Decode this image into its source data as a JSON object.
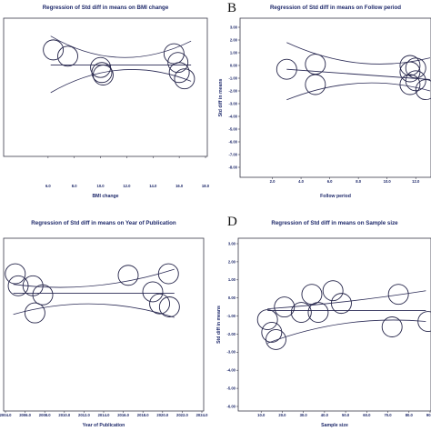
{
  "figure": {
    "letters": [
      "B",
      "D"
    ],
    "colors": {
      "ink": "#1f2a6b",
      "frame": "#3a3a4a",
      "line": "#2a2a55",
      "circle": "#25254a"
    }
  },
  "chart_data": [
    {
      "type": "scatter",
      "title": "Regression of Std diff in means on BMI change",
      "xlabel": "BMI change",
      "ylabel": "",
      "xticks": [
        "6.0",
        "8.0",
        "10.0",
        "12.0",
        "14.0",
        "16.0",
        "18.0"
      ],
      "xlim": [
        4.0,
        18.0
      ],
      "ylim": [
        -8.0,
        3.0
      ],
      "yticks": [],
      "points": [
        {
          "x": 6.4,
          "y": 1.2
        },
        {
          "x": 7.5,
          "y": 0.7
        },
        {
          "x": 10.0,
          "y": -0.2
        },
        {
          "x": 10.1,
          "y": -0.6
        },
        {
          "x": 10.2,
          "y": -0.8
        },
        {
          "x": 15.6,
          "y": 0.9
        },
        {
          "x": 15.9,
          "y": 0.2
        },
        {
          "x": 16.0,
          "y": -0.6
        },
        {
          "x": 16.4,
          "y": -1.1
        }
      ],
      "regression": {
        "intercept": 0.0,
        "slope": 0.0
      },
      "ci_upper": [
        [
          6.2,
          2.3
        ],
        [
          11.5,
          0.6
        ],
        [
          16.9,
          1.9
        ]
      ],
      "ci_lower": [
        [
          6.2,
          -2.2
        ],
        [
          11.5,
          -0.4
        ],
        [
          16.9,
          -1.3
        ]
      ]
    },
    {
      "type": "scatter",
      "title": "Regression of Std diff in means on Follow period",
      "xlabel": "Follow period",
      "ylabel": "Std diff in means",
      "xticks": [
        "2.0",
        "4.0",
        "6.0",
        "8.0",
        "10.0",
        "12.0"
      ],
      "xlim": [
        0.0,
        13.0
      ],
      "ylim": [
        -8.0,
        3.0
      ],
      "yticks": [
        "3.00",
        "2.00",
        "1.00",
        "0.00",
        "-1.00",
        "-2.00",
        "-3.00",
        "-4.00",
        "-5.00",
        "-6.00",
        "-7.00",
        "-8.00"
      ],
      "points": [
        {
          "x": 3.0,
          "y": -0.3
        },
        {
          "x": 5.0,
          "y": 0.1
        },
        {
          "x": 5.0,
          "y": -1.5
        },
        {
          "x": 11.6,
          "y": 0.0
        },
        {
          "x": 11.6,
          "y": -0.5
        },
        {
          "x": 11.6,
          "y": -1.5
        },
        {
          "x": 12.0,
          "y": -0.2
        },
        {
          "x": 12.0,
          "y": -1.2
        },
        {
          "x": 12.7,
          "y": -1.9
        }
      ],
      "regression": {
        "intercept": -0.3,
        "slope": -0.08
      },
      "ci_upper": [
        [
          3.0,
          1.8
        ],
        [
          8.0,
          0.2
        ],
        [
          13.0,
          0.6
        ]
      ],
      "ci_lower": [
        [
          3.0,
          -2.7
        ],
        [
          8.0,
          -1.4
        ],
        [
          13.0,
          -2.0
        ]
      ]
    },
    {
      "type": "scatter",
      "title": "Regression of Std diff in means on Year of Publication",
      "xlabel": "Year of Publication",
      "ylabel": "",
      "xticks": [
        "2004.0",
        "2006.0",
        "2008.0",
        "2010.0",
        "2012.0",
        "2014.0",
        "2016.0",
        "2018.0",
        "2020.0",
        "2022.0",
        "2024.0"
      ],
      "xlim": [
        2004.0,
        2024.0
      ],
      "ylim": [
        -8.0,
        3.0
      ],
      "yticks": [],
      "points": [
        {
          "x": 2005.0,
          "y": 1.0
        },
        {
          "x": 2005.3,
          "y": 0.2
        },
        {
          "x": 2006.8,
          "y": 0.2
        },
        {
          "x": 2007.8,
          "y": -0.4
        },
        {
          "x": 2007.0,
          "y": -1.6
        },
        {
          "x": 2016.5,
          "y": 0.9
        },
        {
          "x": 2019.0,
          "y": -0.2
        },
        {
          "x": 2020.6,
          "y": 1.0
        },
        {
          "x": 2019.7,
          "y": -1.0
        },
        {
          "x": 2020.7,
          "y": -1.2
        }
      ],
      "regression": {
        "intercept": -0.3,
        "slope": 0.0
      },
      "ci_upper": [
        [
          2004.8,
          0.3
        ],
        [
          2013.0,
          0.2
        ],
        [
          2021.2,
          1.3
        ]
      ],
      "ci_lower": [
        [
          2004.8,
          -1.7
        ],
        [
          2013.0,
          -1.0
        ],
        [
          2021.2,
          -1.9
        ]
      ]
    },
    {
      "type": "scatter",
      "title": "Regression of Std diff in means on Sample size",
      "xlabel": "Sample size",
      "ylabel": "Std diff in means",
      "xticks": [
        "10.0",
        "20.0",
        "30.0",
        "40.0",
        "50.0",
        "60.0",
        "70.0",
        "80.0",
        "90.0"
      ],
      "xlim": [
        0.0,
        90.0
      ],
      "ylim": [
        -6.0,
        3.0
      ],
      "yticks": [
        "3.00",
        "2.00",
        "1.00",
        "0.00",
        "-1.00",
        "-2.00",
        "-3.00",
        "-4.00",
        "-5.00",
        "-6.00"
      ],
      "points": [
        {
          "x": 13.0,
          "y": -1.2
        },
        {
          "x": 15.0,
          "y": -1.9
        },
        {
          "x": 17.0,
          "y": -2.3
        },
        {
          "x": 21.0,
          "y": -0.5
        },
        {
          "x": 29.0,
          "y": -0.8
        },
        {
          "x": 34.0,
          "y": 0.2
        },
        {
          "x": 37.0,
          "y": -0.8
        },
        {
          "x": 44.0,
          "y": 0.4
        },
        {
          "x": 48.0,
          "y": -0.3
        },
        {
          "x": 75.0,
          "y": 0.2
        },
        {
          "x": 72.0,
          "y": -1.6
        },
        {
          "x": 89.0,
          "y": -1.3
        }
      ],
      "regression": {
        "intercept": -0.7,
        "slope": 0.0
      },
      "ci_upper": [
        [
          13.0,
          -0.6
        ],
        [
          50.0,
          -0.2
        ],
        [
          88.0,
          0.4
        ]
      ],
      "ci_lower": [
        [
          13.0,
          -2.5
        ],
        [
          50.0,
          -1.4
        ],
        [
          88.0,
          -1.3
        ]
      ]
    }
  ]
}
